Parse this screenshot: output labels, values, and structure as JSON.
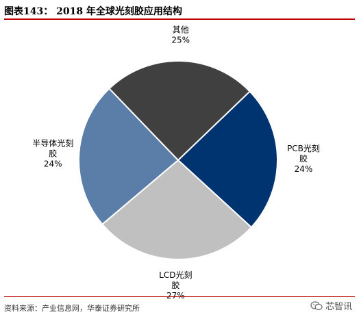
{
  "header": {
    "title": "图表143：  2018 年全球光刻胶应用结构"
  },
  "chart_data": {
    "type": "pie",
    "slices": [
      {
        "label": "PCB光刻胶",
        "value": 24,
        "value_label": "24%",
        "color": "#003471"
      },
      {
        "label": "LCD光刻胶",
        "value": 27,
        "value_label": "27%",
        "color": "#c0c0c0"
      },
      {
        "label": "半导体光刻胶",
        "value": 24,
        "value_label": "24%",
        "color": "#5b7ea8"
      },
      {
        "label": "其他",
        "value": 25,
        "value_label": "25%",
        "color": "#404040"
      }
    ]
  },
  "footer": {
    "source": "资料来源：产业信息网，华泰证券研究所",
    "watermark": "芯智讯",
    "watermark_icon": "wechat-icon"
  }
}
